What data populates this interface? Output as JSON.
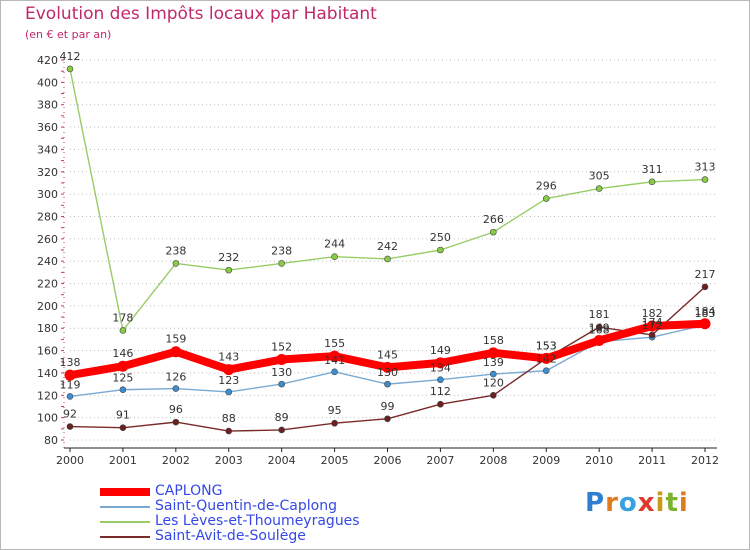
{
  "title": "Evolution des Impôts locaux par Habitant",
  "subtitle": "(en € et par an)",
  "logo": {
    "text": "Proxiti",
    "letter_colors": [
      "#2f7fd0",
      "#e07a1e",
      "#3aa1de",
      "#e03a2e",
      "#c99a12",
      "#7cb32c",
      "#e07a1e"
    ]
  },
  "chart_data": {
    "type": "line",
    "title": "Evolution des Impôts locaux par Habitant",
    "subtitle": "(en € et par an)",
    "x": [
      "2000",
      "2001",
      "2002",
      "2003",
      "2004",
      "2005",
      "2006",
      "2007",
      "2008",
      "2009",
      "2010",
      "2011",
      "2012"
    ],
    "ylim": [
      80,
      420
    ],
    "yticks": [
      80,
      100,
      120,
      140,
      160,
      180,
      200,
      220,
      240,
      260,
      280,
      300,
      320,
      340,
      360,
      380,
      400,
      420
    ],
    "grid": "horizontal-dotted",
    "legend_position": "bottom-left",
    "series": [
      {
        "name": "Les Lèves-et-Thoumeyragues",
        "color": "#99cc66",
        "marker": "#88cc44",
        "values": [
          412,
          178,
          238,
          232,
          238,
          244,
          242,
          250,
          266,
          296,
          305,
          311,
          313
        ]
      },
      {
        "name": "Saint-Quentin-de-Caplong",
        "color": "#7aaad4",
        "marker": "#3b8fd0",
        "values": [
          119,
          125,
          126,
          123,
          130,
          141,
          130,
          134,
          139,
          142,
          168,
          172,
          183
        ]
      },
      {
        "name": "Saint-Avit-de-Soulège",
        "color": "#7a2a2a",
        "marker": "#6b1f1f",
        "values": [
          92,
          91,
          96,
          88,
          89,
          95,
          99,
          112,
          120,
          153,
          181,
          174,
          217
        ]
      },
      {
        "name": "CAPLONG",
        "color": "#ff0000",
        "marker": "#ff0000",
        "values": [
          138,
          146,
          159,
          143,
          152,
          155,
          145,
          149,
          158,
          153,
          169,
          182,
          184
        ]
      }
    ],
    "legend": [
      "CAPLONG",
      "Saint-Quentin-de-Caplong",
      "Les Lèves-et-Thoumeyragues",
      "Saint-Avit-de-Soulège"
    ]
  }
}
